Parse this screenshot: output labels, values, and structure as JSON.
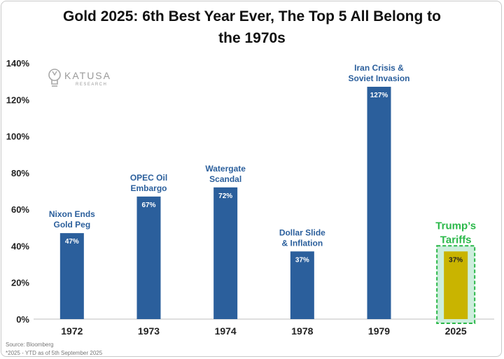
{
  "title_line1": "Gold 2025: 6th Best Year Ever, The Top 5 All Belong to",
  "title_line2": "the 1970s",
  "logo": {
    "name": "KATUSA",
    "sub": "RESEARCH"
  },
  "source": "Source: Bloomberg",
  "footnote": "*2025 - YTD as of 5th September 2025",
  "colors": {
    "bar": "#2b5f9c",
    "highlight_bar": "#c9b400",
    "highlight_text": "#2bb84a",
    "highlight_box": "#cdeedd"
  },
  "chart_data": {
    "type": "bar",
    "title": "Gold 2025: 6th Best Year Ever, The Top 5 All Belong to the 1970s",
    "categories": [
      "1972",
      "1973",
      "1974",
      "1978",
      "1979",
      "2025"
    ],
    "values": [
      47,
      67,
      72,
      37,
      127,
      37
    ],
    "value_labels": [
      "47%",
      "67%",
      "72%",
      "37%",
      "127%",
      "37%"
    ],
    "annotations": [
      [
        "Nixon Ends",
        "Gold Peg"
      ],
      [
        "OPEC Oil",
        "Embargo"
      ],
      [
        "Watergate",
        "Scandal"
      ],
      [
        "Dollar Slide",
        "& Inflation"
      ],
      [
        "Iran Crisis &",
        "Soviet Invasion"
      ],
      [
        "Trump’s",
        "Tariffs"
      ]
    ],
    "highlight_index": 5,
    "ylim": [
      0,
      140
    ],
    "yticks": [
      0,
      20,
      40,
      60,
      80,
      100,
      120,
      140
    ],
    "ytick_labels": [
      "0%",
      "20%",
      "40%",
      "60%",
      "80%",
      "100%",
      "120%",
      "140%"
    ],
    "grid": false
  }
}
